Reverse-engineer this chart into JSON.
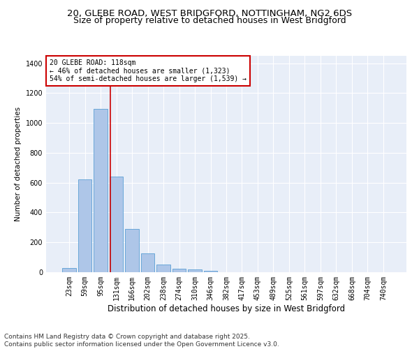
{
  "title_line1": "20, GLEBE ROAD, WEST BRIDGFORD, NOTTINGHAM, NG2 6DS",
  "title_line2": "Size of property relative to detached houses in West Bridgford",
  "xlabel": "Distribution of detached houses by size in West Bridgford",
  "ylabel": "Number of detached properties",
  "categories": [
    "23sqm",
    "59sqm",
    "95sqm",
    "131sqm",
    "166sqm",
    "202sqm",
    "238sqm",
    "274sqm",
    "310sqm",
    "346sqm",
    "382sqm",
    "417sqm",
    "453sqm",
    "489sqm",
    "525sqm",
    "561sqm",
    "597sqm",
    "632sqm",
    "668sqm",
    "704sqm",
    "740sqm"
  ],
  "values": [
    30,
    620,
    1095,
    640,
    290,
    125,
    50,
    25,
    20,
    10,
    0,
    0,
    0,
    0,
    0,
    0,
    0,
    0,
    0,
    0,
    0
  ],
  "bar_color": "#aec6e8",
  "bar_edge_color": "#5a9fd4",
  "vline_color": "#cc0000",
  "annotation_text": "20 GLEBE ROAD: 118sqm\n← 46% of detached houses are smaller (1,323)\n54% of semi-detached houses are larger (1,539) →",
  "annotation_box_color": "#cc0000",
  "ylim": [
    0,
    1450
  ],
  "yticks": [
    0,
    200,
    400,
    600,
    800,
    1000,
    1200,
    1400
  ],
  "background_color": "#e8eef8",
  "grid_color": "#ffffff",
  "footer_line1": "Contains HM Land Registry data © Crown copyright and database right 2025.",
  "footer_line2": "Contains public sector information licensed under the Open Government Licence v3.0.",
  "title_fontsize": 9.5,
  "subtitle_fontsize": 9,
  "xlabel_fontsize": 8.5,
  "ylabel_fontsize": 7.5,
  "tick_fontsize": 7,
  "annotation_fontsize": 7,
  "footer_fontsize": 6.5
}
